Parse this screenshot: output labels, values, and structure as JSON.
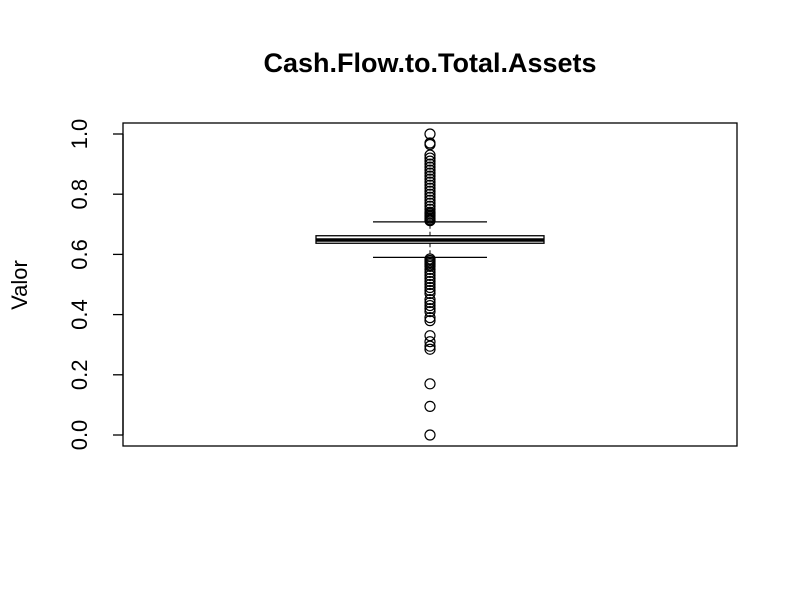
{
  "chart_data": {
    "type": "boxplot",
    "title": "Cash.Flow.to.Total.Assets",
    "xlabel": "",
    "ylabel": "Valor",
    "ylim": [
      0.0,
      1.0
    ],
    "yticks": [
      "0.0",
      "0.2",
      "0.4",
      "0.6",
      "0.8",
      "1.0"
    ],
    "grid": false,
    "legend": "none",
    "box": {
      "whisker_low": 0.59,
      "q1": 0.637,
      "median": 0.648,
      "q3": 0.662,
      "whisker_high": 0.708
    },
    "outliers": [
      1.0,
      0.97,
      0.965,
      0.93,
      0.92,
      0.91,
      0.9,
      0.89,
      0.88,
      0.87,
      0.86,
      0.85,
      0.84,
      0.83,
      0.82,
      0.81,
      0.8,
      0.79,
      0.78,
      0.77,
      0.76,
      0.75,
      0.74,
      0.735,
      0.73,
      0.725,
      0.72,
      0.715,
      0.712,
      0.585,
      0.58,
      0.575,
      0.57,
      0.565,
      0.56,
      0.55,
      0.54,
      0.53,
      0.52,
      0.51,
      0.5,
      0.49,
      0.48,
      0.47,
      0.45,
      0.44,
      0.43,
      0.42,
      0.41,
      0.39,
      0.38,
      0.33,
      0.31,
      0.295,
      0.285,
      0.17,
      0.095,
      0.0
    ],
    "colors": {
      "line": "#000000",
      "background": "#ffffff"
    }
  }
}
